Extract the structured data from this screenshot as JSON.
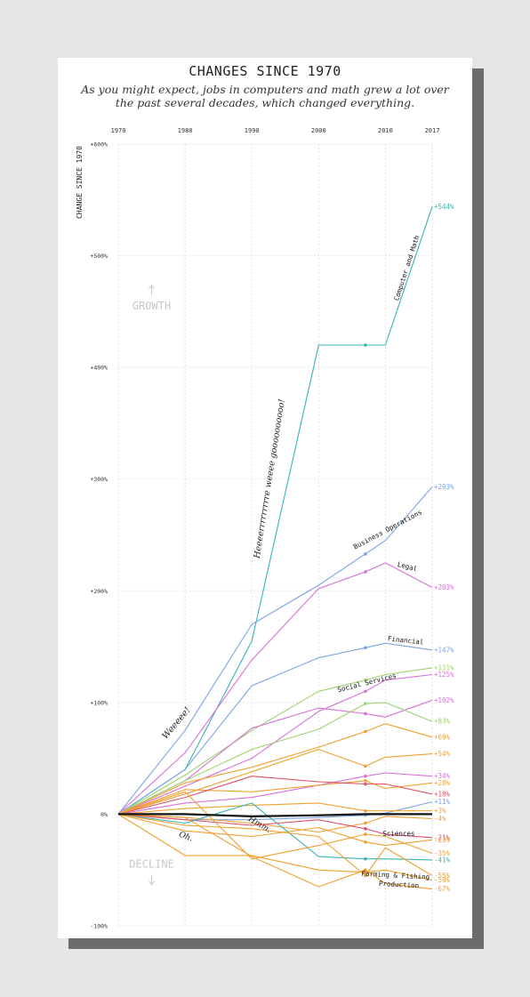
{
  "chart_data": {
    "type": "line",
    "title": "CHANGES SINCE 1970",
    "subtitle": "As you might expect, jobs in computers and math grew a lot over the past several decades, which changed everything.",
    "ylabel": "CHANGE SINCE 1970",
    "x": [
      1970,
      1980,
      1990,
      2000,
      2007,
      2010,
      2017
    ],
    "x_ticks": [
      "1970",
      "1980",
      "1990",
      "2000",
      "2010",
      "2017"
    ],
    "x_tick_values": [
      1970,
      1980,
      1990,
      2000,
      2010,
      2017
    ],
    "ylim": [
      -100,
      600
    ],
    "y_ticks": [
      {
        "value": 600,
        "label": "+600%"
      },
      {
        "value": 500,
        "label": "+500%"
      },
      {
        "value": 400,
        "label": "+400%"
      },
      {
        "value": 300,
        "label": "+300%"
      },
      {
        "value": 200,
        "label": "+200%"
      },
      {
        "value": 100,
        "label": "+100%"
      },
      {
        "value": 0,
        "label": "0%"
      },
      {
        "value": -100,
        "label": "-100%"
      }
    ],
    "grid": true,
    "series": [
      {
        "name": "Computer and Math",
        "color": "#3ab3b3",
        "values": [
          0,
          40,
          155,
          420,
          420,
          420,
          544
        ],
        "end_label": "+544%"
      },
      {
        "name": "Business Operations",
        "color": "#7ba3e8",
        "values": [
          0,
          75,
          170,
          205,
          233,
          245,
          293
        ],
        "end_label": "+293%"
      },
      {
        "name": "Legal",
        "color": "#d870d8",
        "values": [
          0,
          55,
          138,
          202,
          217,
          225,
          203
        ],
        "end_label": "+203%"
      },
      {
        "name": "Financial",
        "color": "#7ba3e8",
        "values": [
          0,
          40,
          115,
          140,
          149,
          153,
          147
        ],
        "end_label": "+147%"
      },
      {
        "color": "#9ad46a",
        "values": [
          0,
          35,
          75,
          110,
          120,
          125,
          131
        ],
        "end_label": "+131%"
      },
      {
        "name": "Social Services",
        "color": "#d870d8",
        "values": [
          0,
          25,
          50,
          92,
          110,
          120,
          125
        ],
        "end_label": "+125%"
      },
      {
        "color": "#d870d8",
        "values": [
          0,
          30,
          77,
          95,
          90,
          87,
          102
        ],
        "end_label": "+102%"
      },
      {
        "color": "#9ad46a",
        "values": [
          0,
          30,
          58,
          76,
          99,
          100,
          83
        ],
        "end_label": "+83%"
      },
      {
        "color": "#f0a030",
        "values": [
          0,
          28,
          42,
          60,
          74,
          81,
          69
        ],
        "end_label": "+69%"
      },
      {
        "color": "#f0a030",
        "values": [
          0,
          18,
          38,
          58,
          43,
          51,
          54
        ],
        "end_label": "+54%"
      },
      {
        "color": "#d870d8",
        "values": [
          0,
          10,
          15,
          26,
          34,
          37,
          34
        ],
        "end_label": "+34%"
      },
      {
        "color": "#f0a030",
        "values": [
          0,
          22,
          20,
          26,
          30,
          23,
          28
        ],
        "end_label": "+28%"
      },
      {
        "color": "#e0506a",
        "values": [
          0,
          15,
          34,
          29,
          27,
          27,
          18
        ],
        "end_label": "+18%"
      },
      {
        "color": "#7ba3e8",
        "values": [
          0,
          -5,
          -5,
          -3,
          -1,
          1,
          11
        ],
        "end_label": "+11%"
      },
      {
        "color": "#f0a030",
        "values": [
          0,
          5,
          8,
          10,
          3,
          3,
          3
        ],
        "end_label": "+3%"
      },
      {
        "color": "#f0a030",
        "values": [
          0,
          -3,
          -8,
          -16,
          -8,
          -2,
          -4
        ],
        "end_label": "-4%"
      },
      {
        "color": "#e0506a",
        "values": [
          0,
          -5,
          -10,
          -5,
          -13,
          -18,
          -21
        ],
        "end_label": "-21%"
      },
      {
        "color": "#f0a030",
        "values": [
          0,
          -15,
          -20,
          -12,
          -25,
          -28,
          -23
        ],
        "end_label": "-23%"
      },
      {
        "color": "#3ab3b3",
        "values": [
          0,
          -8,
          10,
          -38,
          -40,
          -40,
          -41
        ],
        "end_label": "-41%"
      },
      {
        "name": "Sciences",
        "color": "#f0a030",
        "values": [
          0,
          20,
          -40,
          -28,
          -18,
          -20,
          -35
        ],
        "end_label": "-35%"
      },
      {
        "color": "#f0a030",
        "values": [
          0,
          -10,
          -13,
          -20,
          -55,
          -30,
          -55
        ],
        "end_label": "-55%"
      },
      {
        "name": "Farming & Fishing",
        "color": "#f0a030",
        "values": [
          0,
          -37,
          -37,
          -50,
          -52,
          -50,
          -59
        ],
        "end_label": "-59%"
      },
      {
        "name": "Production",
        "color": "#f0a030",
        "values": [
          0,
          -3,
          -38,
          -65,
          -50,
          -62,
          -67
        ],
        "end_label": "-67%"
      },
      {
        "color": "#111111",
        "width": 2.2,
        "values": [
          0,
          0,
          -2,
          -1,
          0,
          0,
          0
        ]
      }
    ],
    "annotations": [
      {
        "text": "Weeeee!",
        "x": 1979,
        "y": 80
      },
      {
        "text": "Heeeerrrrrrrrre weeee goooooooooo!",
        "x": 1993,
        "y": 300
      },
      {
        "text": "Oh.",
        "x": 1980,
        "y": -22
      },
      {
        "text": "Hmm.",
        "x": 1991,
        "y": -11
      },
      {
        "text": "GROWTH",
        "x": 1975,
        "y": 452
      },
      {
        "text": "DECLINE",
        "x": 1975,
        "y": -48
      }
    ]
  }
}
